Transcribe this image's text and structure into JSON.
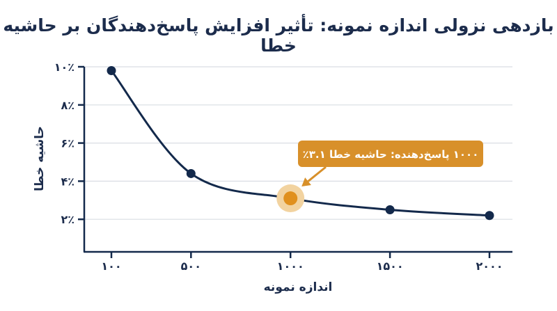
{
  "chart_data": {
    "type": "line",
    "title": "بازدهی نزولی اندازه نمونه: تأثیر افزایش پاسخ‌دهندگان بر حاشیه خطا",
    "xlabel": "اندازه نمونه",
    "ylabel": "حاشیه خطا",
    "x_ticks": [
      100,
      500,
      1000,
      1500,
      2000
    ],
    "x_tick_labels": [
      "۱۰۰",
      "۵۰۰",
      "۱۰۰۰",
      "۱۵۰۰",
      "۲۰۰۰"
    ],
    "y_ticks": [
      2,
      4,
      6,
      8,
      10
    ],
    "y_tick_labels": [
      "۲٪",
      "۴٪",
      "۶٪",
      "۸٪",
      "۱۰٪"
    ],
    "xlim": [
      0,
      2100
    ],
    "ylim": [
      0,
      10
    ],
    "grid": "horizontal",
    "series": [
      {
        "x": [
          100,
          500,
          1000,
          1500,
          2000
        ],
        "y": [
          9.8,
          4.4,
          3.1,
          2.5,
          2.2
        ]
      }
    ],
    "highlight": {
      "x": 1000,
      "y": 3.1
    },
    "annotation": "۱۰۰۰ پاسخ‌دهنده: حاشیه خطا ۳.۱٪",
    "colors": {
      "line": "#13294b",
      "highlight": "#e0901e",
      "halo": "#f2d3a0",
      "callout": "#d8902a",
      "grid": "#d9dde3"
    }
  }
}
